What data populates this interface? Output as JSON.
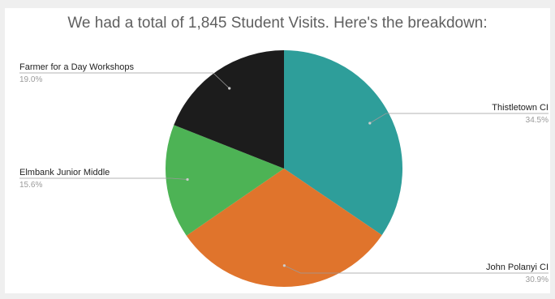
{
  "chart_data": {
    "type": "pie",
    "title": "We had a total of 1,845 Student Visits. Here's the breakdown:",
    "slices": [
      {
        "label": "Thistletown CI",
        "value": 34.5,
        "value_label": "34.5%",
        "color": "#2e9e9a"
      },
      {
        "label": "John Polanyi CI",
        "value": 30.9,
        "value_label": "30.9%",
        "color": "#e0742c"
      },
      {
        "label": "Elmbank Junior Middle",
        "value": 15.6,
        "value_label": "15.6%",
        "color": "#4db355"
      },
      {
        "label": "Farmer for a Day Workshops",
        "value": 19.0,
        "value_label": "19.0%",
        "color": "#1c1c1c"
      }
    ],
    "legend": "labels outside slices with leader lines",
    "start_angle": "12 o'clock, clockwise"
  }
}
